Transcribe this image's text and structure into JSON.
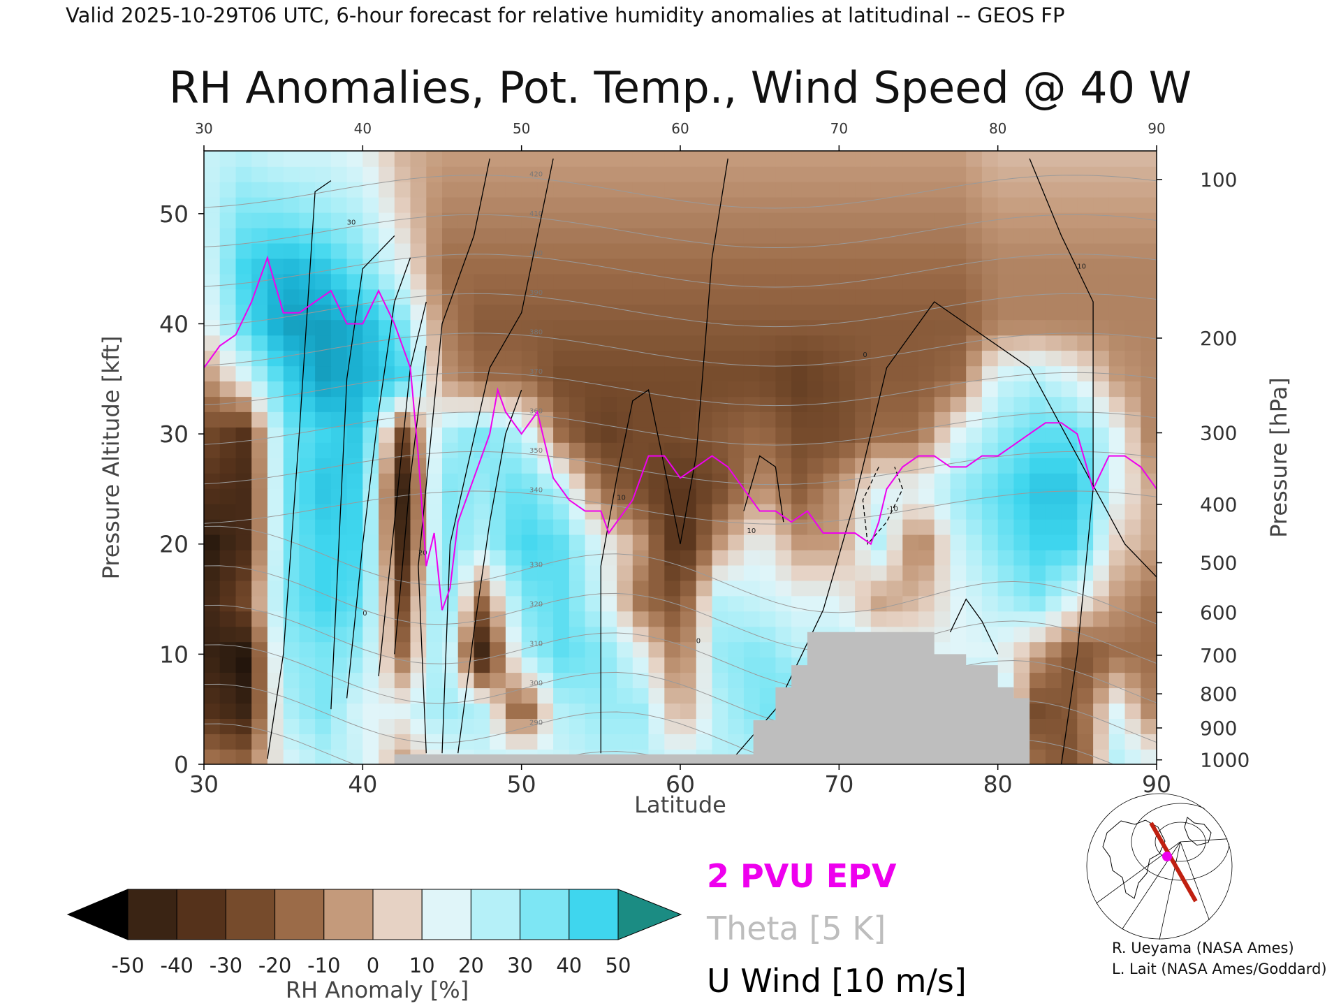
{
  "header": {
    "valid_line": "Valid 2025-10-29T06 UTC, 6-hour forecast for relative humidity anomalies at latitudinal -- GEOS FP"
  },
  "chart_data": {
    "type": "heatmap",
    "title": "RH Anomalies, Pot. Temp., Wind Speed @ 40 W",
    "xlabel": "Latitude",
    "ylabel": "Pressure Altitude [kft]",
    "y2label": "Pressure [hPa]",
    "xlim": [
      30,
      90
    ],
    "ylim": [
      0,
      55.7
    ],
    "x_ticks": [
      "30",
      "40",
      "50",
      "60",
      "70",
      "80",
      "90"
    ],
    "top_ticks": [
      "30",
      "40",
      "50",
      "60",
      "70",
      "80",
      "90"
    ],
    "y_ticks": [
      "0",
      "10",
      "20",
      "30",
      "40",
      "50"
    ],
    "pressure_ticks": [
      {
        "label": "100",
        "kft": 53.1
      },
      {
        "label": "200",
        "kft": 38.7
      },
      {
        "label": "300",
        "kft": 30.1
      },
      {
        "label": "400",
        "kft": 23.6
      },
      {
        "label": "500",
        "kft": 18.3
      },
      {
        "label": "600",
        "kft": 13.8
      },
      {
        "label": "700",
        "kft": 9.9
      },
      {
        "label": "800",
        "kft": 6.4
      },
      {
        "label": "900",
        "kft": 3.3
      },
      {
        "label": "1000",
        "kft": 0.4
      }
    ],
    "rh_anomaly_grid": {
      "lats": [
        30,
        32.5,
        35,
        37.5,
        40,
        42.5,
        45,
        47.5,
        50,
        52.5,
        55,
        57.5,
        60,
        62.5,
        65,
        67.5,
        70,
        72.5,
        75,
        77.5,
        80,
        82.5,
        85,
        87.5,
        90
      ],
      "alts": [
        0,
        5,
        10,
        15,
        20,
        25,
        30,
        35,
        40,
        45,
        50,
        55
      ],
      "values": [
        [
          -15,
          -20,
          10,
          20,
          15,
          -10,
          10,
          15,
          20,
          15,
          20,
          20,
          15,
          20,
          20,
          30,
          30,
          20,
          20,
          30,
          30,
          -20,
          -30,
          20,
          10
        ],
        [
          -40,
          -50,
          20,
          30,
          10,
          10,
          25,
          20,
          -30,
          20,
          25,
          25,
          -10,
          20,
          30,
          35,
          30,
          25,
          25,
          30,
          30,
          -30,
          -25,
          10,
          -20
        ],
        [
          -50,
          -55,
          25,
          30,
          25,
          -20,
          30,
          -50,
          20,
          35,
          30,
          10,
          -20,
          25,
          30,
          20,
          20,
          15,
          10,
          10,
          10,
          -10,
          -30,
          -20,
          -20
        ],
        [
          -50,
          -30,
          30,
          40,
          35,
          -30,
          35,
          -20,
          30,
          35,
          15,
          -20,
          -30,
          20,
          15,
          10,
          10,
          -10,
          -5,
          10,
          20,
          30,
          10,
          -10,
          -20
        ],
        [
          -55,
          -45,
          30,
          40,
          40,
          -45,
          30,
          20,
          40,
          35,
          10,
          -10,
          -45,
          -10,
          10,
          -10,
          -10,
          20,
          -20,
          15,
          30,
          40,
          40,
          0,
          -10
        ],
        [
          -40,
          -45,
          30,
          45,
          40,
          -50,
          30,
          25,
          35,
          20,
          -20,
          -30,
          -40,
          -30,
          -10,
          -25,
          -10,
          10,
          10,
          25,
          35,
          45,
          45,
          10,
          -10
        ],
        [
          -30,
          -40,
          30,
          40,
          45,
          -30,
          20,
          30,
          20,
          -20,
          -35,
          -30,
          -30,
          -25,
          -20,
          -30,
          -30,
          -20,
          -20,
          10,
          25,
          35,
          35,
          10,
          -20
        ],
        [
          -15,
          10,
          40,
          55,
          50,
          40,
          -10,
          -20,
          -20,
          -30,
          -30,
          -30,
          -30,
          -30,
          -30,
          -35,
          -30,
          -25,
          -25,
          -20,
          15,
          20,
          10,
          -10,
          -15
        ],
        [
          5,
          35,
          55,
          55,
          50,
          30,
          -15,
          -25,
          -25,
          -25,
          -25,
          -25,
          -25,
          -25,
          -25,
          -25,
          -25,
          -25,
          -25,
          -25,
          -15,
          -15,
          -15,
          -15,
          -15
        ],
        [
          10,
          40,
          50,
          45,
          30,
          10,
          -20,
          -20,
          -20,
          -20,
          -20,
          -20,
          -20,
          -20,
          -20,
          -20,
          -20,
          -20,
          -20,
          -20,
          -15,
          -15,
          -15,
          -15,
          -15
        ],
        [
          15,
          30,
          30,
          25,
          20,
          0,
          -15,
          -15,
          -15,
          -15,
          -15,
          -15,
          -15,
          -15,
          -15,
          -15,
          -15,
          -15,
          -15,
          -15,
          -10,
          -10,
          -10,
          -10,
          -10
        ],
        [
          15,
          20,
          15,
          15,
          10,
          -5,
          -10,
          -10,
          -10,
          -10,
          -10,
          -10,
          -10,
          -10,
          -10,
          -10,
          -10,
          -10,
          -10,
          -10,
          -5,
          -5,
          -5,
          -5,
          -5
        ]
      ]
    },
    "terrain_kft": [
      [
        42,
        0.9
      ],
      [
        64.6,
        0.9
      ],
      [
        64.6,
        4
      ],
      [
        66,
        4
      ],
      [
        66,
        7
      ],
      [
        67,
        7
      ],
      [
        67,
        9
      ],
      [
        68,
        9
      ],
      [
        68,
        12
      ],
      [
        76,
        12
      ],
      [
        76,
        10
      ],
      [
        78,
        10
      ],
      [
        78,
        9
      ],
      [
        80,
        9
      ],
      [
        80,
        7
      ],
      [
        81,
        7
      ],
      [
        81,
        6
      ],
      [
        82,
        6
      ],
      [
        82,
        0
      ]
    ],
    "epv_2pvu": [
      [
        30,
        36
      ],
      [
        31,
        38
      ],
      [
        32,
        39
      ],
      [
        33,
        42
      ],
      [
        34,
        46
      ],
      [
        35,
        41
      ],
      [
        36,
        41
      ],
      [
        37,
        42
      ],
      [
        38,
        43
      ],
      [
        39,
        40
      ],
      [
        40,
        40
      ],
      [
        41,
        43
      ],
      [
        42,
        40
      ],
      [
        43,
        36
      ],
      [
        43.5,
        28
      ],
      [
        44,
        18
      ],
      [
        44.5,
        21
      ],
      [
        45,
        14
      ],
      [
        45.5,
        16
      ],
      [
        46,
        22
      ],
      [
        47,
        26
      ],
      [
        48,
        30
      ],
      [
        48.5,
        34
      ],
      [
        49,
        32
      ],
      [
        50,
        30
      ],
      [
        51,
        32
      ],
      [
        52,
        26
      ],
      [
        53,
        24
      ],
      [
        54,
        23
      ],
      [
        55,
        23
      ],
      [
        55.5,
        21
      ],
      [
        56,
        22
      ],
      [
        57,
        24
      ],
      [
        58,
        28
      ],
      [
        59,
        28
      ],
      [
        60,
        26
      ],
      [
        61,
        27
      ],
      [
        62,
        28
      ],
      [
        63,
        27
      ],
      [
        64,
        25
      ],
      [
        65,
        23
      ],
      [
        66,
        23
      ],
      [
        67,
        22
      ],
      [
        68,
        23
      ],
      [
        69,
        21
      ],
      [
        70,
        21
      ],
      [
        71,
        21
      ],
      [
        72,
        20
      ],
      [
        72.5,
        22
      ],
      [
        73,
        25
      ],
      [
        74,
        27
      ],
      [
        75,
        28
      ],
      [
        76,
        28
      ],
      [
        77,
        27
      ],
      [
        78,
        27
      ],
      [
        79,
        28
      ],
      [
        80,
        28
      ],
      [
        81,
        29
      ],
      [
        82,
        30
      ],
      [
        83,
        31
      ],
      [
        84,
        31
      ],
      [
        85,
        30
      ],
      [
        86,
        25
      ],
      [
        87,
        28
      ],
      [
        88,
        28
      ],
      [
        89,
        27
      ],
      [
        90,
        25
      ]
    ],
    "theta_levels": [
      280,
      290,
      300,
      310,
      320,
      330,
      340,
      350,
      360,
      370,
      380,
      390,
      400,
      410,
      420
    ],
    "theta_labels": [
      "280",
      "290",
      "300",
      "310",
      "320",
      "330",
      "340",
      "350",
      "360",
      "370",
      "380",
      "390",
      "400",
      "410",
      "420"
    ],
    "u_wind_labels": [
      "0",
      "10",
      "20",
      "30",
      "-10"
    ],
    "colorbar": {
      "label": "RH Anomaly [%]",
      "ticks": [
        "-50",
        "-40",
        "-30",
        "-20",
        "-10",
        "0",
        "10",
        "20",
        "30",
        "40",
        "50"
      ],
      "colors": [
        "#000000",
        "#3a2414",
        "#55321b",
        "#764b2c",
        "#9b6b48",
        "#c49a7b",
        "#e6d2c4",
        "#e0f5f9",
        "#b5f0f8",
        "#7de6f4",
        "#3fd6ee",
        "#1cb4d6",
        "#0e8aa8",
        "#1b8c83"
      ]
    },
    "legend": [
      {
        "label": "2 PVU EPV",
        "color": "#ee00ee"
      },
      {
        "label": "Theta [5 K]",
        "color": "#bdbdbd"
      },
      {
        "label": "U Wind [10 m/s]",
        "color": "#000000"
      }
    ]
  },
  "credits": [
    "R. Ueyama (NASA Ames)",
    "L. Lait (NASA Ames/Goddard)"
  ]
}
